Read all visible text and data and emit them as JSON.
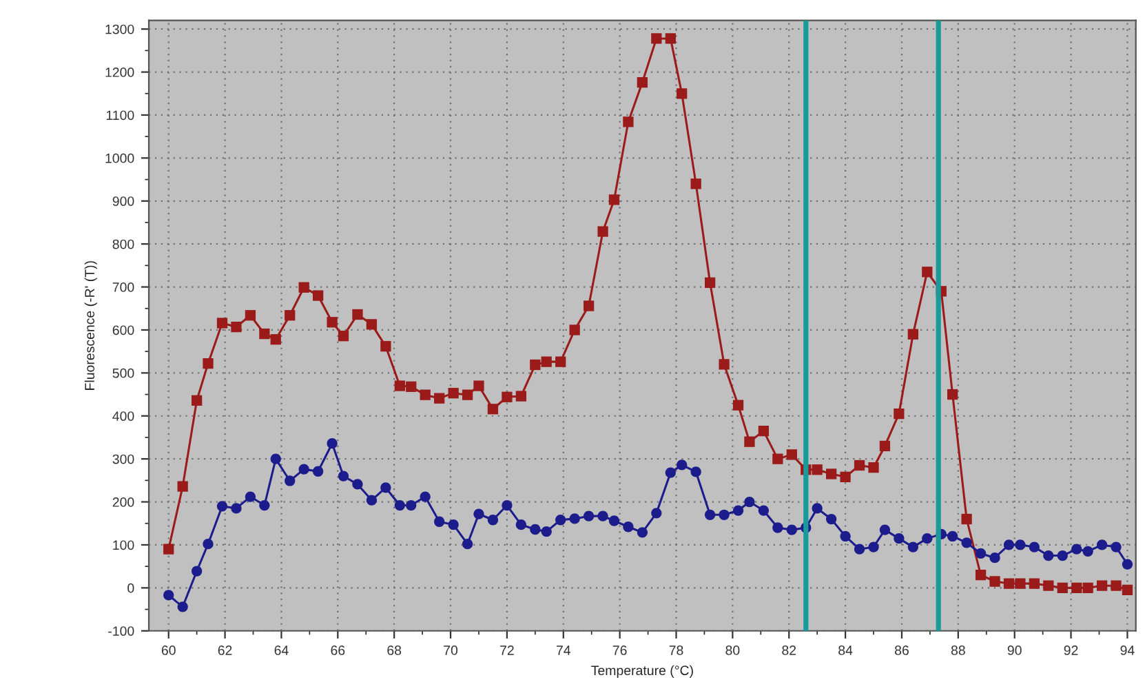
{
  "chart_data": {
    "type": "line",
    "xlabel": "Temperature (°C)",
    "ylabel": "Fluorescence (-R' (T))",
    "x": [
      60,
      60.5,
      61,
      61.4,
      61.9,
      62.4,
      62.9,
      63.4,
      63.8,
      64.3,
      64.8,
      65.3,
      65.8,
      66.2,
      66.7,
      67.2,
      67.7,
      68.2,
      68.6,
      69.1,
      69.6,
      70.1,
      70.6,
      71.0,
      71.5,
      72.0,
      72.5,
      73.0,
      73.4,
      73.9,
      74.4,
      74.9,
      75.4,
      75.8,
      76.3,
      76.8,
      77.3,
      77.8,
      78.2,
      78.7,
      79.2,
      79.7,
      80.2,
      80.6,
      81.1,
      81.6,
      82.1,
      82.6,
      83.0,
      83.5,
      84.0,
      84.5,
      85.0,
      85.4,
      85.9,
      86.4,
      86.9,
      87.4,
      87.8,
      88.3,
      88.8,
      89.3,
      89.8,
      90.2,
      90.7,
      91.2,
      91.7,
      92.2,
      92.6,
      93.1,
      93.6,
      94.0
    ],
    "series": [
      {
        "color": "#9b1a1a",
        "marker": "square",
        "values": [
          90,
          236,
          436,
          522,
          616,
          607,
          634,
          591,
          578,
          634,
          699,
          680,
          618,
          586,
          636,
          613,
          562,
          470,
          468,
          449,
          441,
          453,
          449,
          470,
          416,
          444,
          446,
          519,
          526,
          526,
          600,
          656,
          829,
          903,
          1084,
          1176,
          1278,
          1278,
          1150,
          940,
          710,
          520,
          425,
          340,
          365,
          300,
          310,
          275,
          275,
          265,
          258,
          285,
          280,
          330,
          405,
          590,
          735,
          690,
          450,
          160,
          30,
          15,
          10,
          10,
          10,
          5,
          0,
          0,
          0,
          5,
          5,
          -5
        ]
      },
      {
        "color": "#1c1c8c",
        "marker": "circle",
        "values": [
          -17,
          -44,
          39,
          102,
          190,
          185,
          212,
          192,
          300,
          249,
          276,
          271,
          336,
          260,
          241,
          204,
          233,
          192,
          192,
          212,
          154,
          147,
          102,
          172,
          158,
          192,
          147,
          136,
          131,
          158,
          161,
          167,
          167,
          156,
          142,
          129,
          174,
          268,
          286,
          270,
          170,
          170,
          180,
          200,
          180,
          140,
          135,
          140,
          185,
          160,
          120,
          90,
          95,
          135,
          115,
          95,
          115,
          125,
          120,
          105,
          80,
          70,
          100,
          100,
          95,
          75,
          75,
          90,
          85,
          100,
          95,
          55
        ]
      }
    ],
    "xlim": [
      59.3,
      94.3
    ],
    "xticks": [
      60,
      62,
      64,
      66,
      68,
      70,
      72,
      74,
      76,
      78,
      80,
      82,
      84,
      86,
      88,
      90,
      92,
      94
    ],
    "ylim": [
      -100,
      1320
    ],
    "yticks": [
      -100,
      0,
      100,
      200,
      300,
      400,
      500,
      600,
      700,
      800,
      900,
      1000,
      1100,
      1200,
      1300
    ],
    "ref_lines": [
      {
        "axis": "x",
        "value": 82.6,
        "color": "#1a9a9a"
      },
      {
        "axis": "x",
        "value": 87.3,
        "color": "#1a9a9a"
      }
    ],
    "grid": true,
    "line_style": "solid"
  }
}
